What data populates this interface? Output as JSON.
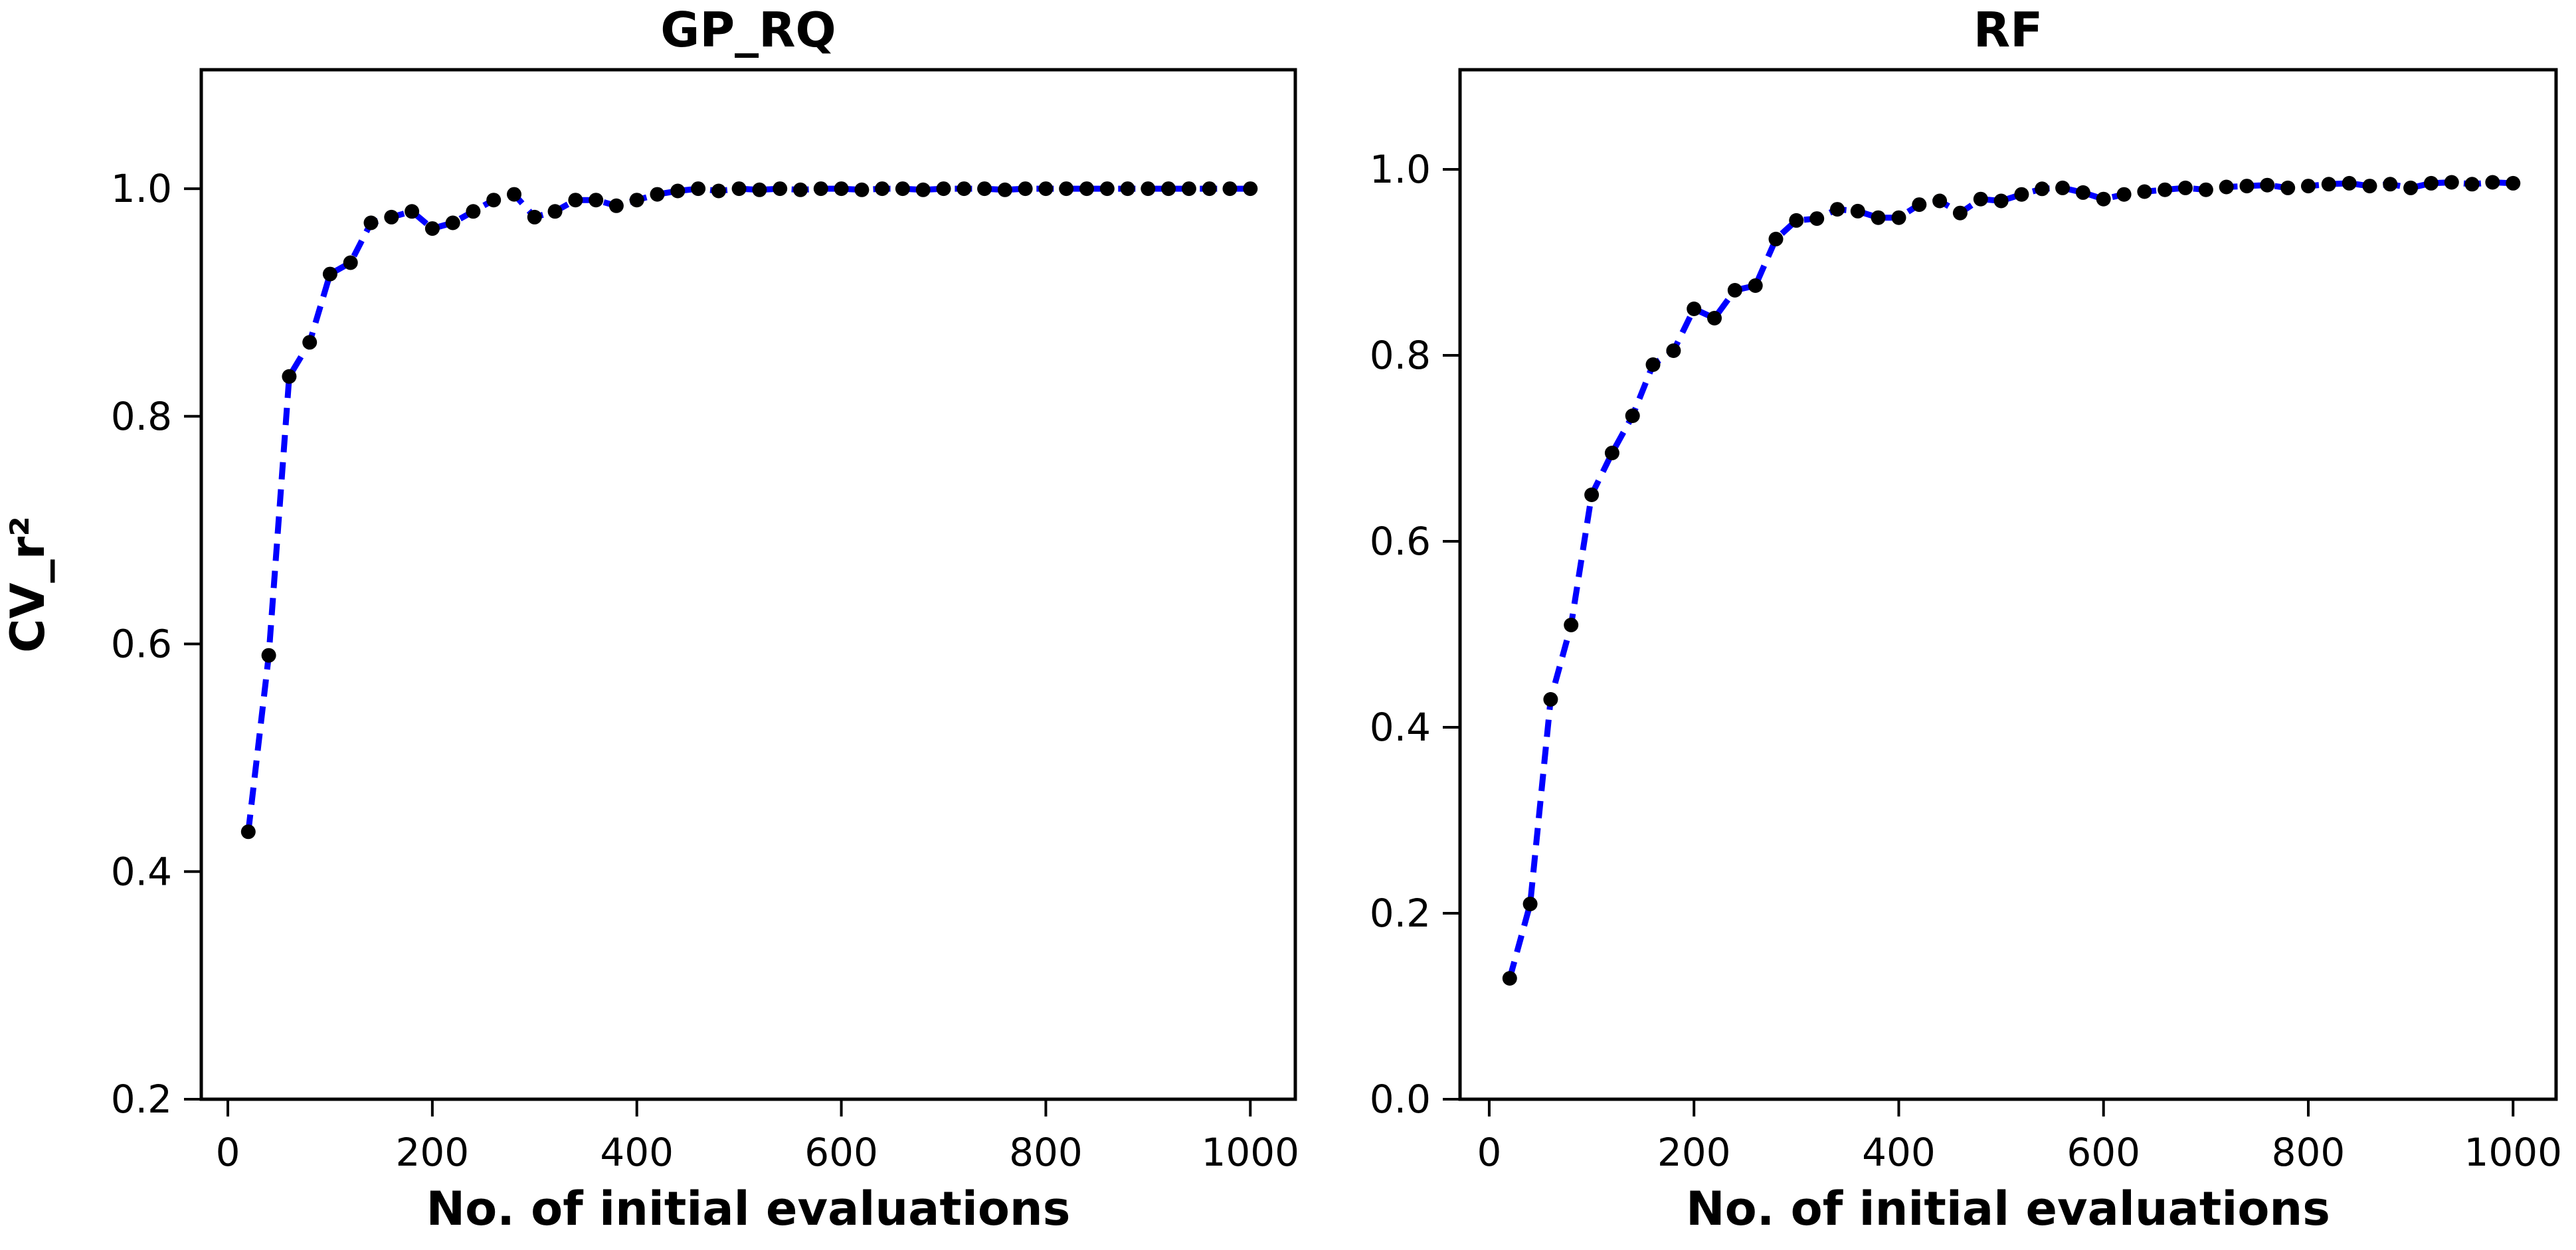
{
  "figure": {
    "background": "#ffffff",
    "shared_x_axis_label": "No. of initial evaluations",
    "shared_y_axis_label": "CV_r²"
  },
  "chart_data": [
    {
      "type": "line",
      "title": "GP_RQ",
      "xlabel": "No. of initial evaluations",
      "ylabel": "CV_r²",
      "line_color": "#0000ff",
      "line_style": "dashed",
      "marker": "circle",
      "marker_color": "#000000",
      "grid": false,
      "legend": null,
      "xlim": [
        -26,
        1044
      ],
      "ylim": [
        0.2,
        1.1045
      ],
      "xticks": [
        0,
        200,
        400,
        600,
        800,
        1000
      ],
      "xtick_labels": [
        "0",
        "200",
        "400",
        "600",
        "800",
        "1000"
      ],
      "yticks": [
        1.0,
        0.8,
        0.6,
        0.4,
        0.2
      ],
      "ytick_labels": [
        "1.0",
        "0.8",
        "0.6",
        "0.4",
        "0.2"
      ],
      "x": [
        20,
        40,
        60,
        80,
        100,
        120,
        140,
        160,
        180,
        200,
        220,
        240,
        260,
        280,
        300,
        320,
        340,
        360,
        380,
        400,
        420,
        440,
        460,
        480,
        500,
        520,
        540,
        560,
        580,
        600,
        620,
        640,
        660,
        680,
        700,
        720,
        740,
        760,
        780,
        800,
        820,
        840,
        860,
        880,
        900,
        920,
        940,
        960,
        980,
        1000
      ],
      "y": [
        0.435,
        0.59,
        0.835,
        0.865,
        0.925,
        0.935,
        0.97,
        0.975,
        0.98,
        0.965,
        0.97,
        0.98,
        0.99,
        0.995,
        0.975,
        0.98,
        0.99,
        0.99,
        0.985,
        0.99,
        0.995,
        0.998,
        1.0,
        0.998,
        1.0,
        0.999,
        1.0,
        0.999,
        1.0,
        1.0,
        0.999,
        1.0,
        1.0,
        0.999,
        1.0,
        1.0,
        1.0,
        0.999,
        1.0,
        1.0,
        1.0,
        1.0,
        1.0,
        1.0,
        1.0,
        1.0,
        1.0,
        1.0,
        1.0,
        1.0
      ]
    },
    {
      "type": "line",
      "title": "RF",
      "xlabel": "No. of initial evaluations",
      "ylabel": "",
      "line_color": "#0000ff",
      "line_style": "dashed",
      "marker": "circle",
      "marker_color": "#000000",
      "grid": false,
      "legend": null,
      "xlim": [
        -28.5,
        1042
      ],
      "ylim": [
        0.0,
        1.1071
      ],
      "xticks": [
        0,
        200,
        400,
        600,
        800,
        1000
      ],
      "xtick_labels": [
        "0",
        "200",
        "400",
        "600",
        "800",
        "1000"
      ],
      "yticks": [
        1.0,
        0.8,
        0.6,
        0.4,
        0.2,
        0.0
      ],
      "ytick_labels": [
        "1.0",
        "0.8",
        "0.6",
        "0.4",
        "0.2",
        "0.0"
      ],
      "x": [
        20,
        40,
        60,
        80,
        100,
        120,
        140,
        160,
        180,
        200,
        220,
        240,
        260,
        280,
        300,
        320,
        340,
        360,
        380,
        400,
        420,
        440,
        460,
        480,
        500,
        520,
        540,
        560,
        580,
        600,
        620,
        640,
        660,
        680,
        700,
        720,
        740,
        760,
        780,
        800,
        820,
        840,
        860,
        880,
        900,
        920,
        940,
        960,
        980,
        1000
      ],
      "y": [
        0.13,
        0.21,
        0.43,
        0.51,
        0.65,
        0.695,
        0.735,
        0.79,
        0.805,
        0.85,
        0.84,
        0.87,
        0.875,
        0.925,
        0.945,
        0.947,
        0.957,
        0.955,
        0.948,
        0.948,
        0.962,
        0.966,
        0.953,
        0.968,
        0.966,
        0.973,
        0.979,
        0.98,
        0.975,
        0.968,
        0.973,
        0.976,
        0.978,
        0.98,
        0.978,
        0.981,
        0.982,
        0.983,
        0.98,
        0.982,
        0.984,
        0.985,
        0.982,
        0.984,
        0.98,
        0.985,
        0.986,
        0.984,
        0.986,
        0.985
      ]
    }
  ]
}
